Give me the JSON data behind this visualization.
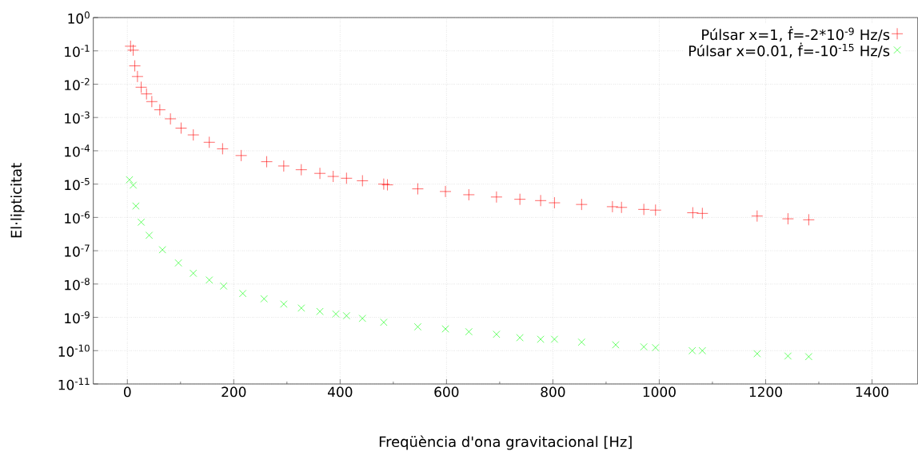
{
  "chart_data": {
    "type": "scatter",
    "xlabel": "Freqüència d'ona gravitacional [Hz]",
    "ylabel": "El·lipticitat",
    "xlim": [
      -64,
      1486
    ],
    "ylim": [
      1e-11,
      1
    ],
    "xticks": [
      0,
      200,
      400,
      600,
      800,
      1000,
      1200,
      1400
    ],
    "yticks": [
      {
        "value": 1e-11,
        "label": "10$^{-11}$"
      },
      {
        "value": 1e-10,
        "label": "10$^{-10}$"
      },
      {
        "value": 1e-09,
        "label": "10$^{-9}$"
      },
      {
        "value": 1e-08,
        "label": "10$^{-8}$"
      },
      {
        "value": 1e-07,
        "label": "10$^{-7}$"
      },
      {
        "value": 1e-06,
        "label": "10$^{-6}$"
      },
      {
        "value": 1e-05,
        "label": "10$^{-5}$"
      },
      {
        "value": 0.0001,
        "label": "10$^{-4}$"
      },
      {
        "value": 0.001,
        "label": "10$^{-3}$"
      },
      {
        "value": 0.01,
        "label": "10$^{-2}$"
      },
      {
        "value": 0.1,
        "label": "10$^{-1}$"
      },
      {
        "value": 1,
        "label": "10$^{0}$"
      }
    ],
    "log": "y",
    "grid": true,
    "legend": "top right",
    "series": [
      {
        "name": "Púlsar x=1, ḟ=-2*10$^{-9}$ Hz/s",
        "color": "#ff0000",
        "marker": "plus",
        "x": [
          6,
          11,
          14,
          19,
          26,
          36,
          46,
          61,
          81,
          101,
          124,
          154,
          179,
          214,
          262,
          294,
          327,
          362,
          387,
          412,
          442,
          482,
          489,
          546,
          598,
          642,
          694,
          738,
          777,
          803,
          854,
          912,
          929,
          971,
          993,
          1063,
          1081,
          1184,
          1242,
          1281
        ],
        "values": [
          0.138,
          0.105,
          0.0355,
          0.017,
          0.0081,
          0.0051,
          0.003,
          0.0017,
          0.00091,
          0.00048,
          0.0003,
          0.00018,
          0.000115,
          7.2e-05,
          4.7e-05,
          3.5e-05,
          2.7e-05,
          2.1e-05,
          1.7e-05,
          1.5e-05,
          1.26e-05,
          1e-05,
          9.5e-06,
          7.2e-06,
          6e-06,
          4.8e-06,
          4.1e-06,
          3.5e-06,
          3.2e-06,
          2.75e-06,
          2.45e-06,
          2.1e-06,
          2e-06,
          1.74e-06,
          1.66e-06,
          1.38e-06,
          1.32e-06,
          1.1e-06,
          9.1e-07,
          8.5e-07
        ]
      },
      {
        "name": "Púlsar x=0.01, ḟ=-10$^{-15}$ Hz/s",
        "color": "#00ff00",
        "marker": "cross",
        "x": [
          4,
          11,
          16,
          26,
          41,
          66,
          96,
          124,
          154,
          181,
          217,
          257,
          294,
          327,
          362,
          392,
          412,
          442,
          482,
          546,
          598,
          642,
          694,
          738,
          777,
          803,
          854,
          918,
          971,
          993,
          1062,
          1081,
          1184,
          1242,
          1281
        ],
        "values": [
          1.35e-05,
          9.3e-06,
          2.2e-06,
          7.2e-07,
          2.9e-07,
          1.07e-07,
          4.3e-08,
          2.1e-08,
          1.32e-08,
          8.7e-09,
          5.2e-09,
          3.6e-09,
          2.5e-09,
          1.9e-09,
          1.5e-09,
          1.26e-09,
          1.12e-09,
          9.3e-10,
          7.1e-10,
          5.2e-10,
          4.5e-10,
          3.7e-10,
          3.1e-10,
          2.45e-10,
          2.2e-10,
          2.2e-10,
          1.8e-10,
          1.5e-10,
          1.3e-10,
          1.23e-10,
          1e-10,
          1e-10,
          8.1e-11,
          6.9e-11,
          6.6e-11
        ]
      }
    ]
  }
}
